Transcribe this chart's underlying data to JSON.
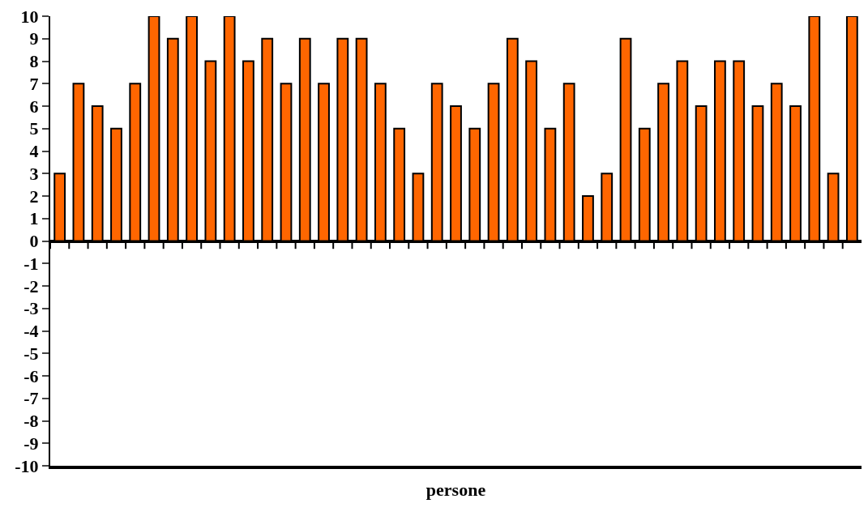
{
  "chart_data": {
    "type": "bar",
    "xlabel": "persone",
    "categories": [
      null,
      null,
      null,
      null,
      null,
      null,
      null,
      null,
      null,
      null,
      null,
      null,
      null,
      null,
      null,
      null,
      null,
      null,
      null,
      null,
      null,
      null,
      null,
      null,
      null,
      null,
      null,
      null,
      null,
      null,
      null,
      null,
      null,
      null,
      null,
      null,
      null,
      null,
      null,
      null,
      null,
      null,
      null
    ],
    "values": [
      3,
      7,
      6,
      5,
      7,
      10,
      9,
      10,
      8,
      10,
      8,
      9,
      7,
      9,
      7,
      9,
      9,
      7,
      5,
      3,
      7,
      6,
      5,
      7,
      9,
      8,
      5,
      7,
      2,
      3,
      9,
      5,
      7,
      8,
      6,
      8,
      8,
      6,
      7,
      6,
      10,
      3,
      10
    ],
    "color": "#ff6600",
    "ylim": [
      -10,
      10
    ],
    "yticks": [
      -10,
      -9,
      -8,
      -7,
      -6,
      -5,
      -4,
      -3,
      -2,
      -1,
      0,
      1,
      2,
      3,
      4,
      5,
      6,
      7,
      8,
      9,
      10
    ],
    "tick_labels": "y"
  }
}
